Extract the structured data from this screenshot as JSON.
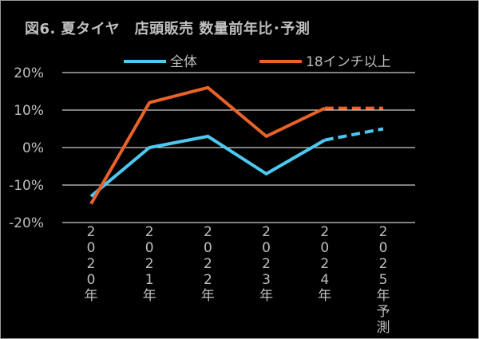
{
  "title": "図6. 夏タイヤ　店頭販売 数量前年比･予測",
  "colors": {
    "background": "#000000",
    "text": "#bfbfbf",
    "grid": "#ffffff",
    "series_all": "#4dc8f0",
    "series_18": "#e8622a"
  },
  "chart_data": {
    "type": "line",
    "categories": [
      "2020年",
      "2021年",
      "2022年",
      "2023年",
      "2024年",
      "2025年予測"
    ],
    "y_tick_labels": [
      "20%",
      "10%",
      "0%",
      "-10%",
      "-20%"
    ],
    "ylim": [
      -20,
      20
    ],
    "unit": "%",
    "grid": true,
    "legend_position": "top",
    "forecast_categories": [
      "2025年予測"
    ],
    "series": [
      {
        "name": "全体",
        "values": [
          -13,
          0,
          3,
          -7,
          2,
          5
        ]
      },
      {
        "name": "18インチ以上",
        "values": [
          -15,
          12,
          16,
          3,
          10.5,
          10.5
        ]
      }
    ]
  }
}
